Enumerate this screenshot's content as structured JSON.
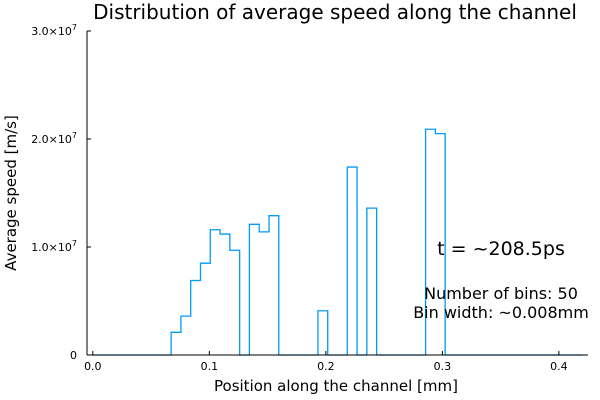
{
  "chart_data": {
    "type": "histogram-step",
    "title": "Distribution of average speed along the channel",
    "xlabel": "Position along the channel [mm]",
    "ylabel": "Average speed [m/s]",
    "xlim": [
      -0.005,
      0.425
    ],
    "ylim": [
      0,
      30000000
    ],
    "x_ticks": [
      {
        "value": 0.0,
        "label": "0.0"
      },
      {
        "value": 0.1,
        "label": "0.1"
      },
      {
        "value": 0.2,
        "label": "0.2"
      },
      {
        "value": 0.3,
        "label": "0.3"
      },
      {
        "value": 0.4,
        "label": "0.4"
      }
    ],
    "y_ticks": [
      {
        "value": 0,
        "mantissa": "0",
        "exponent": ""
      },
      {
        "value": 10000000,
        "mantissa": "1.0×10",
        "exponent": "7"
      },
      {
        "value": 20000000,
        "mantissa": "2.0×10",
        "exponent": "7"
      },
      {
        "value": 30000000,
        "mantissa": "3.0×10",
        "exponent": "7"
      }
    ],
    "grid": false,
    "legend": "none",
    "series": [
      {
        "color": "#009AFA",
        "bin_edges": [
          0,
          0.0084,
          0.0168,
          0.0252,
          0.0336,
          0.042,
          0.0504,
          0.0588,
          0.0672,
          0.0756,
          0.084,
          0.0924,
          0.1008,
          0.1092,
          0.1176,
          0.126,
          0.1344,
          0.1428,
          0.1512,
          0.1596,
          0.168,
          0.1764,
          0.1848,
          0.1932,
          0.2016,
          0.21,
          0.2184,
          0.2268,
          0.2352,
          0.2436,
          0.252,
          0.2604,
          0.2688,
          0.2772,
          0.2856,
          0.294,
          0.3024,
          0.3108,
          0.3192,
          0.3276,
          0.336,
          0.3444,
          0.3528,
          0.3612,
          0.3696,
          0.378,
          0.3864,
          0.3948,
          0.4032,
          0.4116,
          0.42
        ],
        "values": [
          0,
          0,
          0,
          0,
          0,
          0,
          0,
          0,
          2100000,
          3600000,
          6900000,
          8500000,
          11600000,
          11200000,
          9700000,
          0,
          12100000,
          11400000,
          12900000,
          0,
          0,
          0,
          0,
          4100000,
          0,
          0,
          17400000,
          0,
          13600000,
          0,
          0,
          0,
          0,
          0,
          20900000,
          20500000,
          0,
          0,
          0,
          0,
          0,
          0,
          0,
          0,
          0,
          0,
          0,
          0,
          0,
          0
        ]
      }
    ],
    "annotations": {
      "time": "t = ~208.5ps",
      "bins": "Number of bins: 50",
      "width": "Bin width: ~0.008mm"
    }
  }
}
